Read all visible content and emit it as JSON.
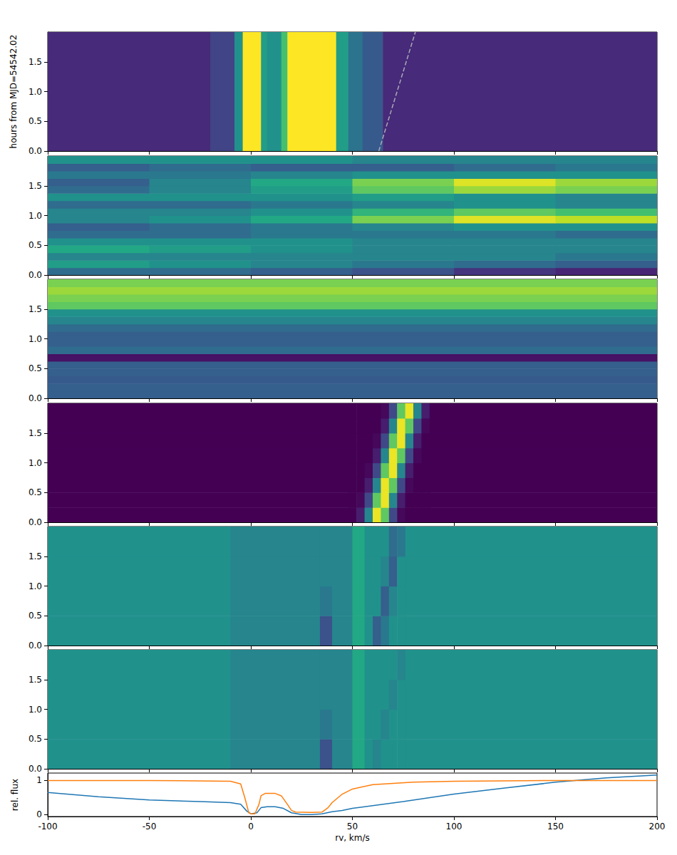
{
  "chart_data": [
    {
      "type": "heatmap",
      "ylabel": "hours from MJD=54542.02",
      "xlim": [
        -100,
        200
      ],
      "xticks": [
        -100,
        -50,
        0,
        50,
        100,
        150,
        200
      ],
      "ylim": [
        0,
        2
      ],
      "yticks": [
        {
          "value": 0,
          "label": "0.0"
        },
        {
          "value": 0.5,
          "label": "0.5"
        },
        {
          "value": 1,
          "label": "1.0"
        },
        {
          "value": 1.5,
          "label": "1.5"
        }
      ],
      "tick_labels": "y",
      "clim": [
        0,
        1
      ],
      "x_edges": [
        -100,
        -20,
        -8,
        -4,
        5,
        8,
        15,
        18,
        42,
        48,
        55,
        65,
        200
      ],
      "y_edges": [
        0,
        2
      ],
      "cells": [
        [
          0.12,
          0.2,
          0.5,
          1.0,
          0.55,
          0.5,
          0.7,
          1.0,
          0.55,
          0.38,
          0.28,
          0.12
        ]
      ],
      "series": [
        {
          "type": "line",
          "line_style": "dashed",
          "color": "#a9a9b8",
          "x": [
            63,
            81
          ],
          "y": [
            0,
            2
          ]
        }
      ]
    },
    {
      "type": "heatmap",
      "xlim": [
        -100,
        200
      ],
      "xticks": [
        -100,
        -50,
        0,
        50,
        100,
        150,
        200
      ],
      "ylim": [
        0,
        2
      ],
      "yticks": [
        {
          "value": 0,
          "label": "0.0"
        },
        {
          "value": 0.5,
          "label": "0.5"
        },
        {
          "value": 1,
          "label": "1.0"
        },
        {
          "value": 1.5,
          "label": "1.5"
        }
      ],
      "tick_labels": "y",
      "clim": [
        0,
        1
      ],
      "x_edges": [
        -100,
        -50,
        0,
        50,
        100,
        150,
        200
      ],
      "y_edges": [
        0,
        0.125,
        0.25,
        0.375,
        0.5,
        0.625,
        0.75,
        0.875,
        1,
        1.125,
        1.25,
        1.375,
        1.5,
        1.625,
        1.75,
        1.875,
        2
      ],
      "cells": [
        [
          0.35,
          0.35,
          0.3,
          0.25,
          0.15,
          0.1
        ],
        [
          0.55,
          0.5,
          0.45,
          0.4,
          0.35,
          0.3
        ],
        [
          0.45,
          0.45,
          0.45,
          0.45,
          0.45,
          0.4
        ],
        [
          0.6,
          0.55,
          0.5,
          0.45,
          0.45,
          0.45
        ],
        [
          0.5,
          0.5,
          0.5,
          0.45,
          0.45,
          0.45
        ],
        [
          0.35,
          0.35,
          0.4,
          0.4,
          0.4,
          0.35
        ],
        [
          0.3,
          0.35,
          0.4,
          0.45,
          0.5,
          0.5
        ],
        [
          0.45,
          0.5,
          0.6,
          0.8,
          0.95,
          0.9
        ],
        [
          0.45,
          0.45,
          0.5,
          0.65,
          0.75,
          0.7
        ],
        [
          0.35,
          0.35,
          0.4,
          0.45,
          0.5,
          0.45
        ],
        [
          0.5,
          0.5,
          0.5,
          0.55,
          0.5,
          0.45
        ],
        [
          0.35,
          0.45,
          0.55,
          0.75,
          0.85,
          0.8
        ],
        [
          0.3,
          0.45,
          0.6,
          0.8,
          0.95,
          0.85
        ],
        [
          0.4,
          0.4,
          0.45,
          0.5,
          0.5,
          0.5
        ],
        [
          0.3,
          0.35,
          0.3,
          0.3,
          0.35,
          0.4
        ],
        [
          0.5,
          0.5,
          0.5,
          0.45,
          0.45,
          0.45
        ]
      ]
    },
    {
      "type": "heatmap",
      "xlim": [
        -100,
        200
      ],
      "xticks": [
        -100,
        -50,
        0,
        50,
        100,
        150,
        200
      ],
      "ylim": [
        0,
        2
      ],
      "yticks": [
        {
          "value": 0,
          "label": "0.0"
        },
        {
          "value": 0.5,
          "label": "0.5"
        },
        {
          "value": 1,
          "label": "1.0"
        },
        {
          "value": 1.5,
          "label": "1.5"
        }
      ],
      "tick_labels": "y",
      "clim": [
        0,
        1
      ],
      "x_edges": [
        -100,
        200
      ],
      "y_edges": [
        0,
        0.125,
        0.25,
        0.375,
        0.5,
        0.625,
        0.75,
        0.875,
        1,
        1.125,
        1.25,
        1.375,
        1.5,
        1.625,
        1.75,
        1.875,
        2
      ],
      "cells": [
        [
          0.3
        ],
        [
          0.3
        ],
        [
          0.28
        ],
        [
          0.3
        ],
        [
          0.3
        ],
        [
          0.05
        ],
        [
          0.35
        ],
        [
          0.3
        ],
        [
          0.3
        ],
        [
          0.35
        ],
        [
          0.45
        ],
        [
          0.5
        ],
        [
          0.75
        ],
        [
          0.8
        ],
        [
          0.85
        ],
        [
          0.8
        ]
      ]
    },
    {
      "type": "heatmap",
      "xlim": [
        -100,
        200
      ],
      "xticks": [
        -100,
        -50,
        0,
        50,
        100,
        150,
        200
      ],
      "ylim": [
        0,
        2
      ],
      "yticks": [
        {
          "value": 0,
          "label": "0.0"
        },
        {
          "value": 0.5,
          "label": "0.5"
        },
        {
          "value": 1,
          "label": "1.0"
        },
        {
          "value": 1.5,
          "label": "1.5"
        }
      ],
      "tick_labels": "y",
      "clim": [
        0,
        1
      ],
      "x_edges": [
        -100,
        48,
        52,
        56,
        60,
        64,
        68,
        72,
        76,
        80,
        84,
        88,
        200
      ],
      "y_edges": [
        0,
        0.25,
        0.5,
        0.75,
        1,
        1.25,
        1.5,
        1.75,
        2
      ],
      "cells": [
        [
          0,
          0,
          0.08,
          0.46,
          0.97,
          0.75,
          0.22,
          0.02,
          0,
          0,
          0,
          0
        ],
        [
          0,
          0,
          0.02,
          0.22,
          0.75,
          0.97,
          0.46,
          0.08,
          0,
          0,
          0,
          0
        ],
        [
          0,
          0,
          0,
          0.08,
          0.46,
          0.97,
          0.75,
          0.22,
          0.02,
          0,
          0,
          0
        ],
        [
          0,
          0,
          0,
          0.02,
          0.22,
          0.75,
          0.97,
          0.46,
          0.08,
          0,
          0,
          0
        ],
        [
          0,
          0,
          0,
          0,
          0.08,
          0.46,
          0.97,
          0.75,
          0.22,
          0.02,
          0,
          0
        ],
        [
          0,
          0,
          0,
          0,
          0.02,
          0.22,
          0.75,
          0.97,
          0.46,
          0.08,
          0,
          0
        ],
        [
          0,
          0,
          0,
          0,
          0,
          0.08,
          0.46,
          0.97,
          0.75,
          0.22,
          0.02,
          0
        ],
        [
          0,
          0,
          0,
          0,
          0,
          0.02,
          0.22,
          0.75,
          0.97,
          0.46,
          0.08,
          0
        ]
      ]
    },
    {
      "type": "heatmap",
      "xlim": [
        -100,
        200
      ],
      "xticks": [
        -100,
        -50,
        0,
        50,
        100,
        150,
        200
      ],
      "ylim": [
        0,
        2
      ],
      "yticks": [
        {
          "value": 0,
          "label": "0.0"
        },
        {
          "value": 0.5,
          "label": "0.5"
        },
        {
          "value": 1,
          "label": "1.0"
        },
        {
          "value": 1.5,
          "label": "1.5"
        }
      ],
      "tick_labels": "y",
      "clim": [
        0,
        1
      ],
      "x_edges": [
        -100,
        -10,
        34,
        40,
        50,
        56,
        60,
        64,
        68,
        72,
        76,
        200
      ],
      "y_edges": [
        0,
        0.5,
        1,
        1.5,
        2
      ],
      "cells": [
        [
          0.5,
          0.45,
          0.25,
          0.45,
          0.6,
          0.5,
          0.3,
          0.4,
          0.5,
          0.5,
          0.5
        ],
        [
          0.5,
          0.45,
          0.4,
          0.45,
          0.6,
          0.5,
          0.5,
          0.3,
          0.45,
          0.5,
          0.5
        ],
        [
          0.5,
          0.45,
          0.45,
          0.45,
          0.6,
          0.5,
          0.5,
          0.45,
          0.3,
          0.5,
          0.5
        ],
        [
          0.5,
          0.45,
          0.45,
          0.45,
          0.6,
          0.5,
          0.5,
          0.5,
          0.35,
          0.4,
          0.5
        ]
      ]
    },
    {
      "type": "heatmap",
      "xlim": [
        -100,
        200
      ],
      "xticks": [
        -100,
        -50,
        0,
        50,
        100,
        150,
        200
      ],
      "ylim": [
        0,
        2
      ],
      "yticks": [
        {
          "value": 0,
          "label": "0.0"
        },
        {
          "value": 0.5,
          "label": "0.5"
        },
        {
          "value": 1,
          "label": "1.0"
        },
        {
          "value": 1.5,
          "label": "1.5"
        }
      ],
      "tick_labels": "y",
      "clim": [
        0,
        1
      ],
      "x_edges": [
        -100,
        -10,
        34,
        40,
        50,
        56,
        60,
        64,
        68,
        72,
        76,
        200
      ],
      "y_edges": [
        0,
        0.5,
        1,
        1.5,
        2
      ],
      "cells": [
        [
          0.5,
          0.45,
          0.25,
          0.45,
          0.6,
          0.5,
          0.45,
          0.5,
          0.5,
          0.5,
          0.5
        ],
        [
          0.5,
          0.45,
          0.4,
          0.45,
          0.6,
          0.5,
          0.5,
          0.45,
          0.5,
          0.5,
          0.5
        ],
        [
          0.5,
          0.45,
          0.45,
          0.45,
          0.6,
          0.5,
          0.5,
          0.5,
          0.45,
          0.5,
          0.5
        ],
        [
          0.5,
          0.45,
          0.45,
          0.45,
          0.6,
          0.5,
          0.5,
          0.5,
          0.5,
          0.45,
          0.5
        ]
      ]
    },
    {
      "type": "line",
      "xlabel": "rv, km/s",
      "ylabel": "rel. flux",
      "xlim": [
        -100,
        200
      ],
      "xticks": [
        -100,
        -50,
        0,
        50,
        100,
        150,
        200
      ],
      "ylim": [
        -0.06,
        1.22
      ],
      "yticks": [
        0,
        1
      ],
      "series": [
        {
          "color": "#1f77b4",
          "line_style": "solid",
          "x": [
            -100,
            -75,
            -50,
            -25,
            -10,
            -5,
            -2,
            0,
            3,
            5,
            8,
            12,
            16,
            20,
            25,
            30,
            35,
            40,
            45,
            50,
            75,
            100,
            125,
            150,
            175,
            200
          ],
          "y": [
            0.65,
            0.52,
            0.43,
            0.38,
            0.35,
            0.3,
            0.1,
            0.02,
            0.05,
            0.2,
            0.23,
            0.23,
            0.18,
            0.05,
            0.0,
            0.0,
            0.02,
            0.08,
            0.12,
            0.18,
            0.38,
            0.6,
            0.78,
            0.95,
            1.08,
            1.16
          ]
        },
        {
          "color": "#ff7f0e",
          "line_style": "solid",
          "x": [
            -100,
            -50,
            -10,
            -5,
            -3,
            -1,
            0,
            2,
            4,
            5,
            7,
            12,
            15,
            18,
            20,
            22,
            30,
            35,
            38,
            40,
            45,
            50,
            60,
            80,
            100,
            150,
            200
          ],
          "y": [
            1.0,
            1.0,
            0.98,
            0.9,
            0.5,
            0.05,
            0.02,
            0.02,
            0.3,
            0.55,
            0.62,
            0.62,
            0.55,
            0.3,
            0.12,
            0.07,
            0.06,
            0.07,
            0.2,
            0.35,
            0.6,
            0.75,
            0.88,
            0.95,
            0.98,
            1.0,
            1.0
          ]
        }
      ]
    }
  ]
}
